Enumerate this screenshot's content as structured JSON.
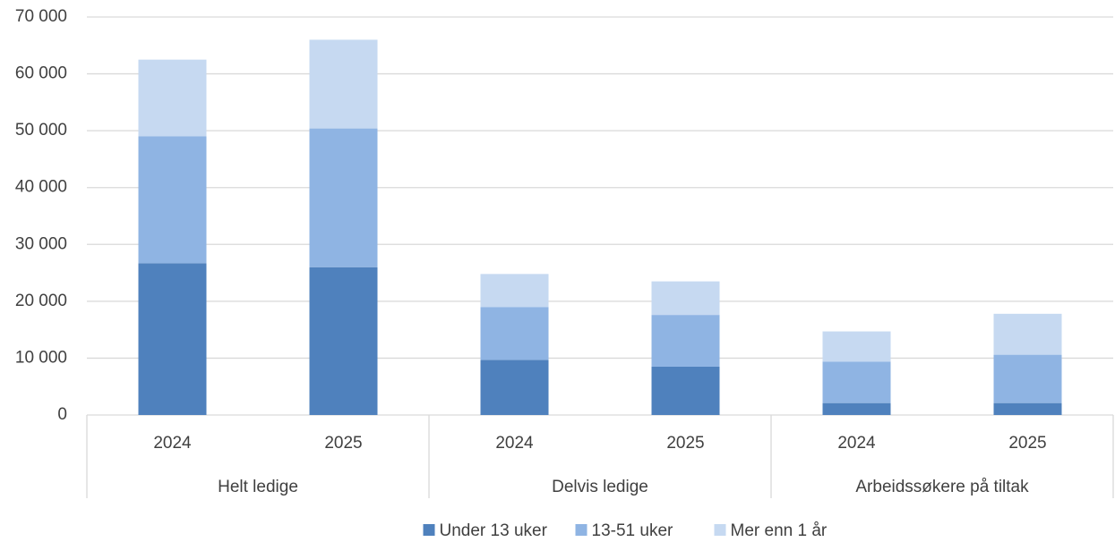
{
  "chart_data": {
    "type": "stacked_bar",
    "categories": [
      "2024",
      "2025",
      "2024",
      "2025",
      "2024",
      "2025"
    ],
    "groups": [
      "Helt ledige",
      "Delvis ledige",
      "Arbeidssøkere på tiltak"
    ],
    "series": [
      {
        "name": "Under 13 uker",
        "color": "#4f81bd",
        "values": [
          26700,
          26000,
          9700,
          8500,
          2100,
          2100
        ]
      },
      {
        "name": "13-51 uker",
        "color": "#8fb4e3",
        "values": [
          22300,
          24400,
          9300,
          9100,
          7300,
          8500
        ]
      },
      {
        "name": "Mer enn 1 år",
        "color": "#c6d9f1",
        "values": [
          13500,
          15600,
          5800,
          5900,
          5300,
          7200
        ]
      }
    ],
    "ylim": [
      0,
      70000
    ],
    "yticks": [
      0,
      {
        "value": 10000,
        "label": "10 000"
      },
      {
        "value": 20000,
        "label": "20 000"
      },
      {
        "value": 30000,
        "label": "30 000"
      },
      {
        "value": 40000,
        "label": "40 000"
      },
      {
        "value": 50000,
        "label": "50 000"
      },
      {
        "value": 60000,
        "label": "60 000"
      },
      {
        "value": 70000,
        "label": "70 000"
      }
    ],
    "grid": true,
    "legend": "bottom"
  }
}
